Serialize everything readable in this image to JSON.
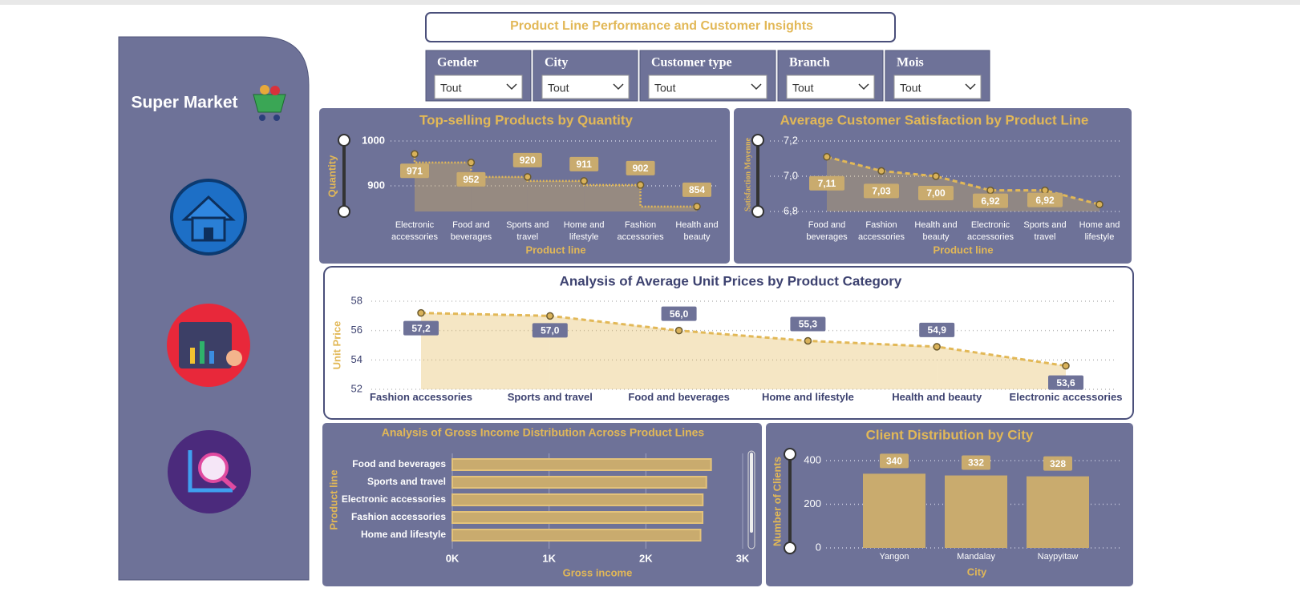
{
  "header": {
    "title": "Product Line Performance and Customer Insights"
  },
  "sidebar": {
    "brand": "Super Market"
  },
  "filters": [
    {
      "label": "Gender",
      "value": "Tout"
    },
    {
      "label": "City",
      "value": "Tout"
    },
    {
      "label": "Customer type",
      "value": "Tout"
    },
    {
      "label": "Branch",
      "value": "Tout"
    },
    {
      "label": "Mois",
      "value": "Tout"
    }
  ],
  "chart_data": [
    {
      "type": "line",
      "step": true,
      "title": "Top-selling Products by Quantity",
      "x_label": "Product line",
      "y_label": "Quantity",
      "categories": [
        "Electronic accessories",
        "Food and beverages",
        "Sports and travel",
        "Home and lifestyle",
        "Fashion accessories",
        "Health and beauty"
      ],
      "values": [
        971,
        952,
        920,
        911,
        902,
        854
      ],
      "ylim": [
        843,
        1000
      ],
      "yticks": [
        900,
        1000
      ],
      "grid": true,
      "color": "#e2b857"
    },
    {
      "type": "line",
      "title": "Average Customer Satisfaction by Product Line",
      "x_label": "Product line",
      "y_label": "Satisfaction Moyenne",
      "categories": [
        "Food and beverages",
        "Fashion accessories",
        "Health and beauty",
        "Electronic accessories",
        "Sports and travel",
        "Home and lifestyle"
      ],
      "values": [
        7.11,
        7.03,
        7.0,
        6.92,
        6.92,
        6.84
      ],
      "value_labels": [
        "7,11",
        "7,03",
        "7,00",
        "6,92",
        "6,92",
        null
      ],
      "ylim": [
        6.8,
        7.2
      ],
      "yticks": [
        {
          "value": 6.8,
          "label": "6,8"
        },
        {
          "value": 7.0,
          "label": "7,0"
        },
        {
          "value": 7.2,
          "label": "7,2"
        }
      ],
      "grid": true,
      "color": "#e2b857"
    },
    {
      "type": "line",
      "title": "Analysis of Average Unit Prices by Product Category",
      "y_label": "Unit Price",
      "categories": [
        "Fashion accessories",
        "Sports and travel",
        "Food and beverages",
        "Home and lifestyle",
        "Health and beauty",
        "Electronic accessories"
      ],
      "values": [
        57.2,
        57.0,
        56.0,
        55.3,
        54.9,
        53.6
      ],
      "value_labels": [
        "57,2",
        "57,0",
        "56,0",
        "55,3",
        "54,9",
        "53,6"
      ],
      "ylim": [
        52,
        58
      ],
      "yticks": [
        52,
        54,
        56,
        58
      ],
      "grid": true,
      "color": "#e2b857"
    },
    {
      "type": "bar",
      "orientation": "horizontal",
      "title": "Analysis of Gross Income Distribution Across Product Lines",
      "x_label": "Gross income",
      "y_label": "Product line",
      "categories": [
        "Food and beverages",
        "Sports and travel",
        "Electronic accessories",
        "Fashion accessories",
        "Home and lifestyle"
      ],
      "values": [
        2674,
        2625,
        2588,
        2586,
        2565
      ],
      "xlim": [
        0,
        3000
      ],
      "xticks": [
        {
          "value": 0,
          "label": "0K"
        },
        {
          "value": 1000,
          "label": "1K"
        },
        {
          "value": 2000,
          "label": "2K"
        },
        {
          "value": 3000,
          "label": "3K"
        }
      ],
      "grid": true,
      "color": "#c9ab6e"
    },
    {
      "type": "bar",
      "title": "Client Distribution by City",
      "x_label": "City",
      "y_label": "Number of Clients",
      "categories": [
        "Yangon",
        "Mandalay",
        "Naypyitaw"
      ],
      "values": [
        340,
        332,
        328
      ],
      "ylim": [
        0,
        400
      ],
      "yticks": [
        0,
        200,
        400
      ],
      "grid": true,
      "color": "#c9ab6e"
    }
  ]
}
